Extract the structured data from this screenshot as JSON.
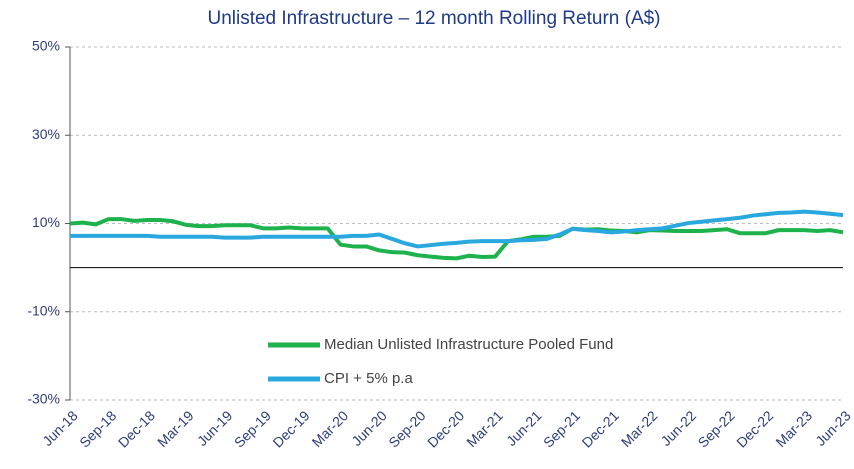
{
  "chart_data": {
    "type": "line",
    "title": "Unlisted Infrastructure – 12 month Rolling Return (A$)",
    "categories": [
      "Jun-18",
      null,
      null,
      "Sep-18",
      null,
      null,
      "Dec-18",
      null,
      null,
      "Mar-19",
      null,
      null,
      "Jun-19",
      null,
      null,
      "Sep-19",
      null,
      null,
      "Dec-19",
      null,
      null,
      "Mar-20",
      null,
      null,
      "Jun-20",
      null,
      null,
      "Sep-20",
      null,
      null,
      "Dec-20",
      null,
      null,
      "Mar-21",
      null,
      null,
      "Jun-21",
      null,
      null,
      "Sep-21",
      null,
      null,
      "Dec-21",
      null,
      null,
      "Mar-22",
      null,
      null,
      "Jun-22",
      null,
      null,
      "Sep-22",
      null,
      null,
      "Dec-22",
      null,
      null,
      "Mar-23",
      null,
      null,
      "Jun-23"
    ],
    "series": [
      {
        "name": "Median Unlisted Infrastructure Pooled Fund",
        "color": "#1db24b",
        "values": [
          10,
          10.2,
          9.8,
          11,
          11,
          10.6,
          10.8,
          10.8,
          10.5,
          9.7,
          9.4,
          9.4,
          9.6,
          9.6,
          9.6,
          8.9,
          8.9,
          9.1,
          8.9,
          8.9,
          8.9,
          5.2,
          4.8,
          4.8,
          3.9,
          3.5,
          3.4,
          2.8,
          2.5,
          2.2,
          2.1,
          2.7,
          2.4,
          2.5,
          6.0,
          6.4,
          7,
          7,
          7.2,
          8.8,
          8.6,
          8.7,
          8.4,
          8.3,
          8.0,
          8.5,
          8.4,
          8.3,
          8.3,
          8.3,
          8.5,
          8.7,
          7.8,
          7.8,
          7.8,
          8.5,
          8.5,
          8.5,
          8.3,
          8.5,
          8.0
        ]
      },
      {
        "name": "CPI + 5% p.a",
        "color": "#29a8e0",
        "values": [
          7.2,
          7.2,
          7.2,
          7.2,
          7.2,
          7.2,
          7.2,
          7.0,
          7.0,
          7.0,
          7.0,
          7.0,
          6.8,
          6.8,
          6.8,
          7.0,
          7.0,
          7.0,
          7.0,
          7.0,
          7.0,
          7.0,
          7.2,
          7.2,
          7.5,
          6.5,
          5.5,
          4.8,
          5.1,
          5.4,
          5.6,
          5.9,
          6.0,
          6.0,
          6.0,
          6.2,
          6.3,
          6.5,
          7.5,
          8.8,
          8.5,
          8.3,
          8.0,
          8.2,
          8.5,
          8.7,
          8.9,
          9.5,
          10.1,
          10.4,
          10.7,
          11.0,
          11.3,
          11.8,
          12.1,
          12.4,
          12.5,
          12.7,
          12.5,
          12.2,
          11.9
        ]
      }
    ],
    "ylim": [
      -30,
      50
    ],
    "yticks": [
      {
        "value": 50,
        "label": "50%"
      },
      {
        "value": 30,
        "label": "30%"
      },
      {
        "value": 10,
        "label": "10%"
      },
      {
        "value": -10,
        "label": "-10%"
      },
      {
        "value": -30,
        "label": "-30%"
      }
    ],
    "grid": true
  }
}
